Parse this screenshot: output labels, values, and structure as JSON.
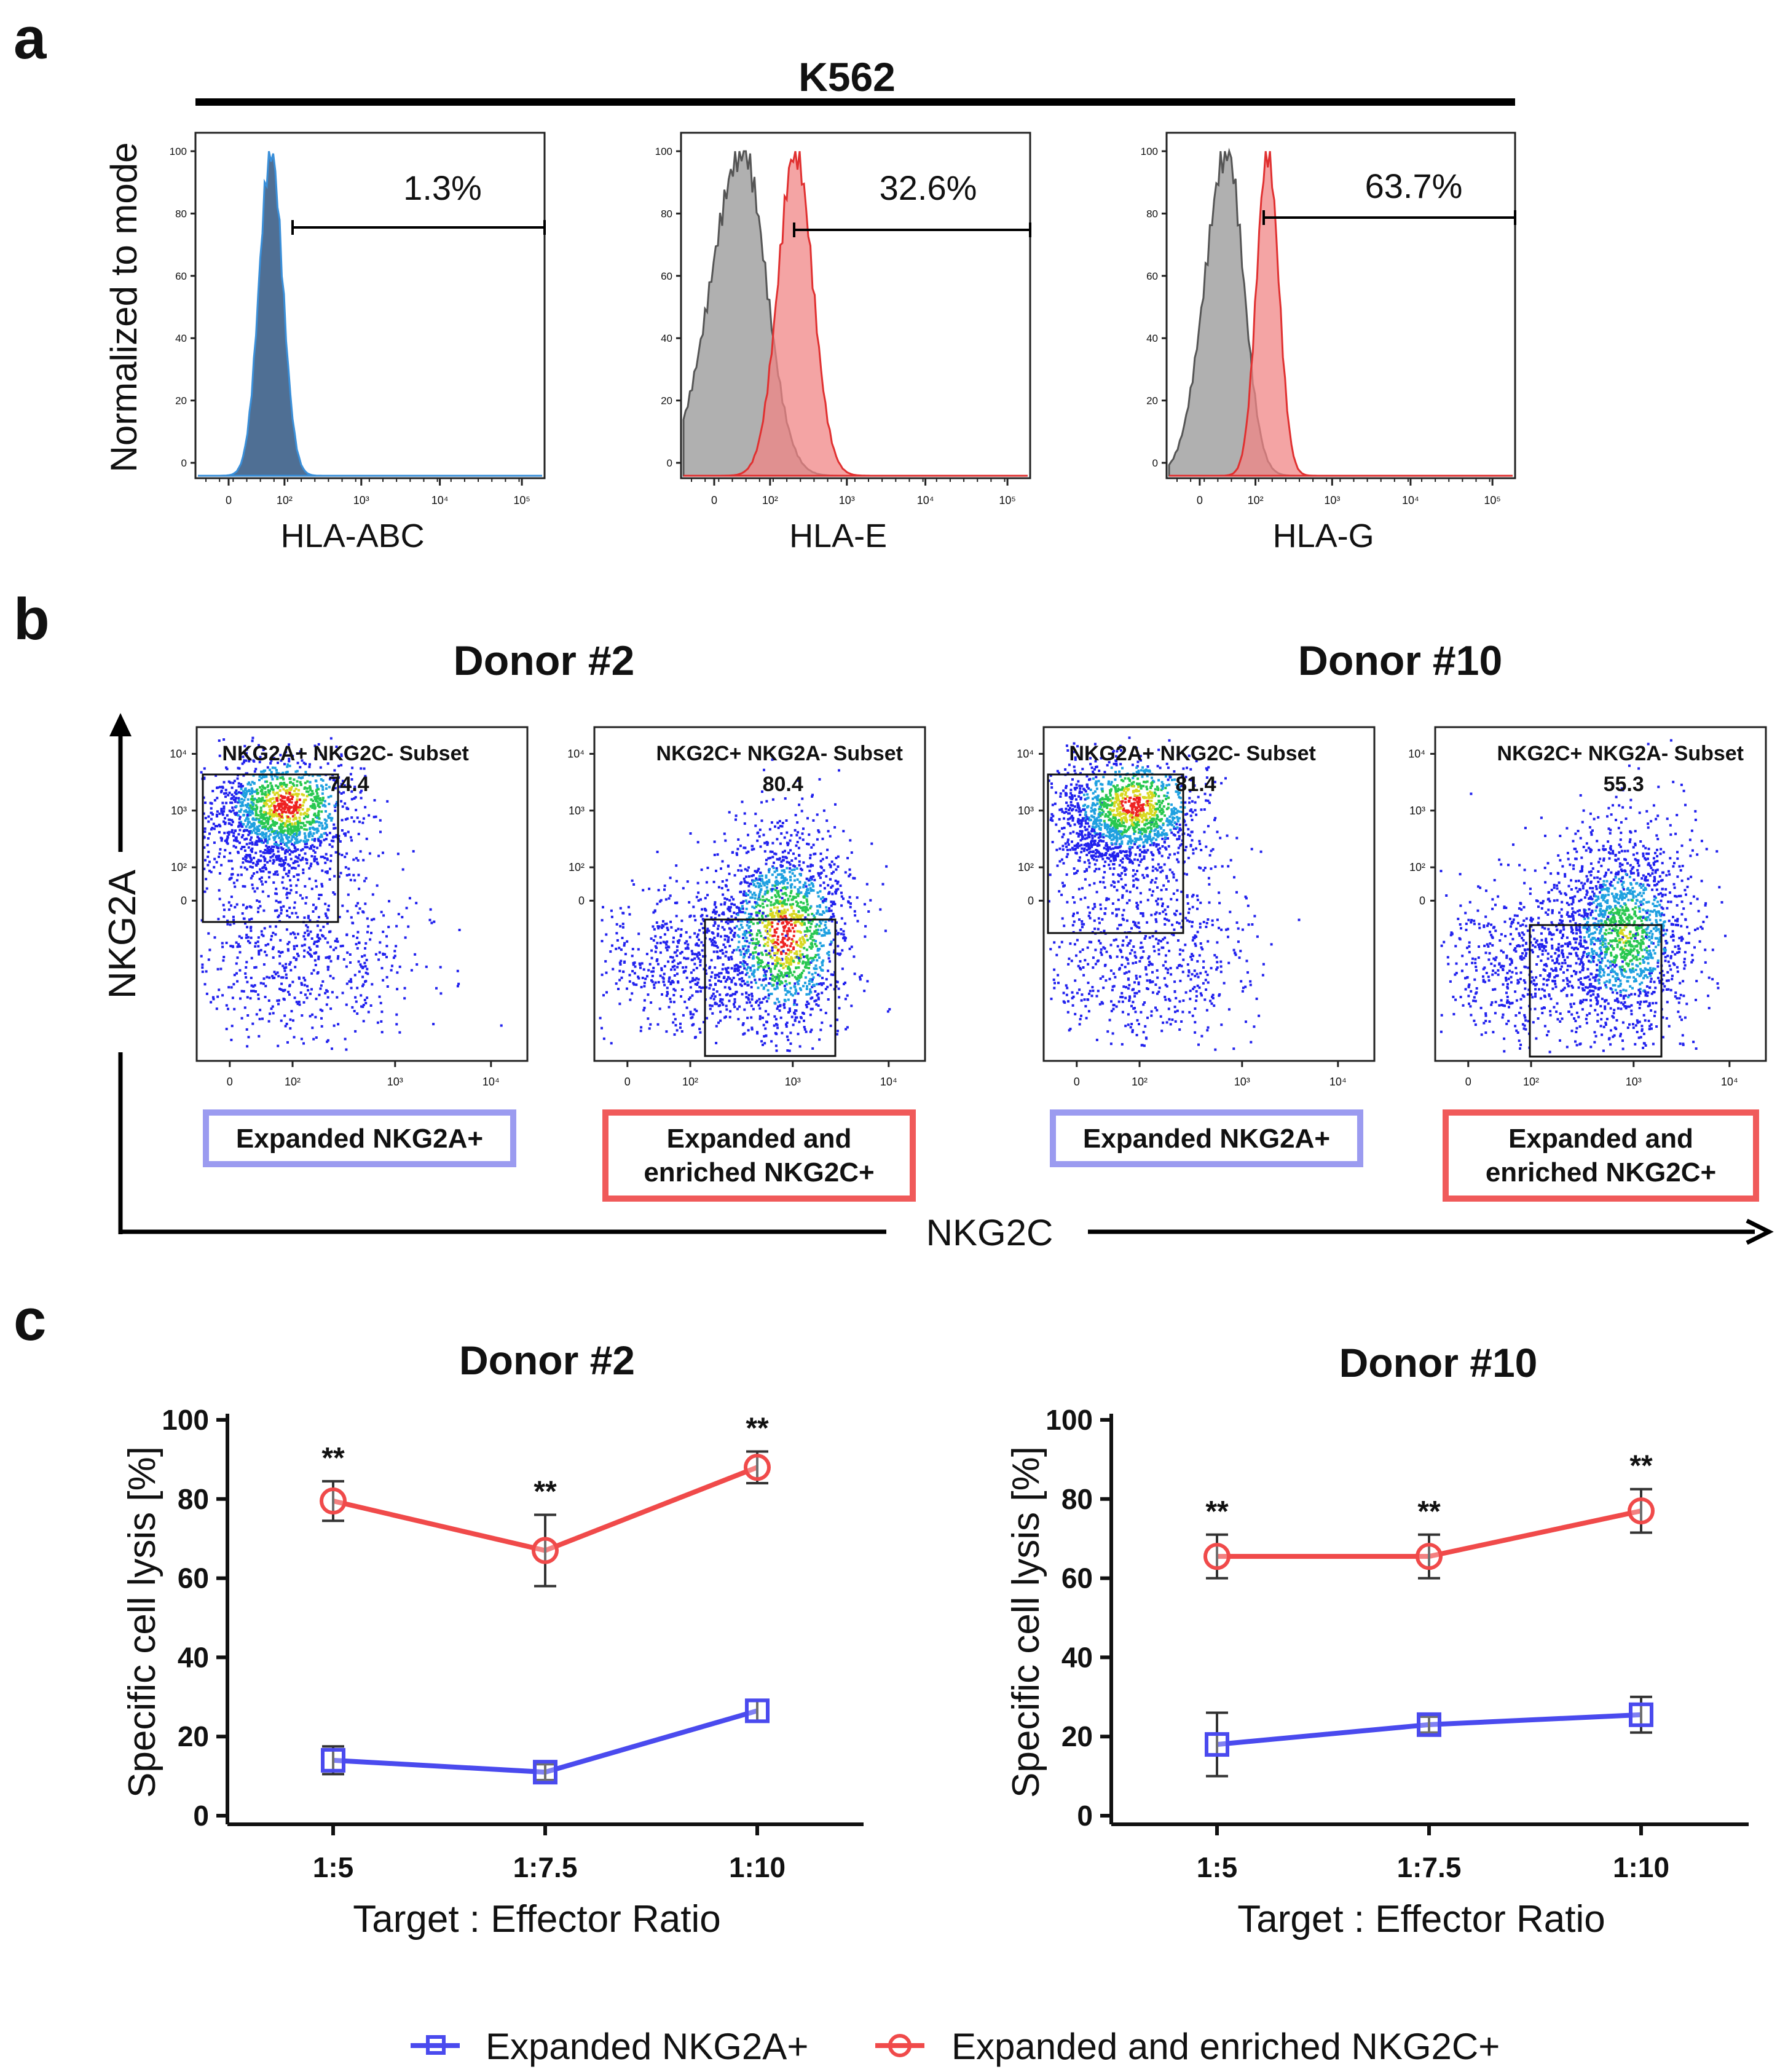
{
  "panel_labels": {
    "a": "a",
    "b": "b",
    "c": "c"
  },
  "colors": {
    "red": "#f04a4a",
    "blue": "#4a4aee",
    "grey": "#8c8c8c",
    "steel": "#4f6f94",
    "outline_blue": "#9b9bf0",
    "outline_red": "#f05a5a"
  },
  "panel_a": {
    "title": "K562",
    "ylabel": "Normalized to mode",
    "y_ticks": [
      "100",
      "80",
      "60",
      "40",
      "20",
      "0"
    ],
    "x_ticks": [
      "0",
      "10²",
      "10³",
      "10⁴",
      "10⁵"
    ],
    "histograms": [
      {
        "xlabel": "HLA-ABC",
        "percent": "1.3%"
      },
      {
        "xlabel": "HLA-E",
        "percent": "32.6%"
      },
      {
        "xlabel": "HLA-G",
        "percent": "63.7%"
      }
    ]
  },
  "panel_b": {
    "donor_titles": [
      "Donor #2",
      "Donor #10"
    ],
    "y_axis_label": "NKG2A",
    "x_axis_label": "NKG2C",
    "axis_ticks": [
      "10⁴",
      "10³",
      "10²",
      "0"
    ],
    "x_ticks": [
      "0",
      "10²",
      "10³",
      "10⁴"
    ],
    "plots": [
      {
        "gate_title": "NKG2A+ NKG2C- Subset",
        "gate_value": "74.4",
        "caption_line1": "Expanded NKG2A+",
        "caption_line2": "",
        "type": "a"
      },
      {
        "gate_title": "NKG2C+ NKG2A- Subset",
        "gate_value": "80.4",
        "caption_line1": "Expanded and",
        "caption_line2": "enriched NKG2C+",
        "type": "c"
      },
      {
        "gate_title": "NKG2A+ NKG2C- Subset",
        "gate_value": "81.4",
        "caption_line1": "Expanded NKG2A+",
        "caption_line2": "",
        "type": "a"
      },
      {
        "gate_title": "NKG2C+ NKG2A- Subset",
        "gate_value": "55.3",
        "caption_line1": "Expanded and",
        "caption_line2": "enriched NKG2C+",
        "type": "c"
      }
    ]
  },
  "panel_c": {
    "legend": [
      "Expanded NKG2A+",
      "Expanded and enriched NKG2C+"
    ]
  },
  "chart_data": [
    {
      "type": "line",
      "title": "Donor #2",
      "xlabel": "Target : Effector Ratio",
      "ylabel": "Specific cell lysis [%]",
      "categories": [
        "1:5",
        "1:7.5",
        "1:10"
      ],
      "ylim": [
        0,
        100
      ],
      "y_ticks": [
        0,
        20,
        40,
        60,
        80,
        100
      ],
      "series": [
        {
          "name": "Expanded NKG2A+",
          "values": [
            14,
            11,
            26.5
          ],
          "errors": [
            3.5,
            2,
            2.5
          ]
        },
        {
          "name": "Expanded and enriched NKG2C+",
          "values": [
            79.5,
            67,
            88
          ],
          "errors": [
            5,
            9,
            4
          ]
        }
      ],
      "annotations": [
        "**",
        "**",
        "**"
      ]
    },
    {
      "type": "line",
      "title": "Donor #10",
      "xlabel": "Target : Effector Ratio",
      "ylabel": "Specific cell lysis [%]",
      "categories": [
        "1:5",
        "1:7.5",
        "1:10"
      ],
      "ylim": [
        0,
        100
      ],
      "y_ticks": [
        0,
        20,
        40,
        60,
        80,
        100
      ],
      "series": [
        {
          "name": "Expanded NKG2A+",
          "values": [
            18,
            23,
            25.5
          ],
          "errors": [
            8,
            2,
            4.5
          ]
        },
        {
          "name": "Expanded and enriched NKG2C+",
          "values": [
            65.5,
            65.5,
            77
          ],
          "errors": [
            5.5,
            5.5,
            5.5
          ]
        }
      ],
      "annotations": [
        "**",
        "**",
        "**"
      ]
    }
  ]
}
